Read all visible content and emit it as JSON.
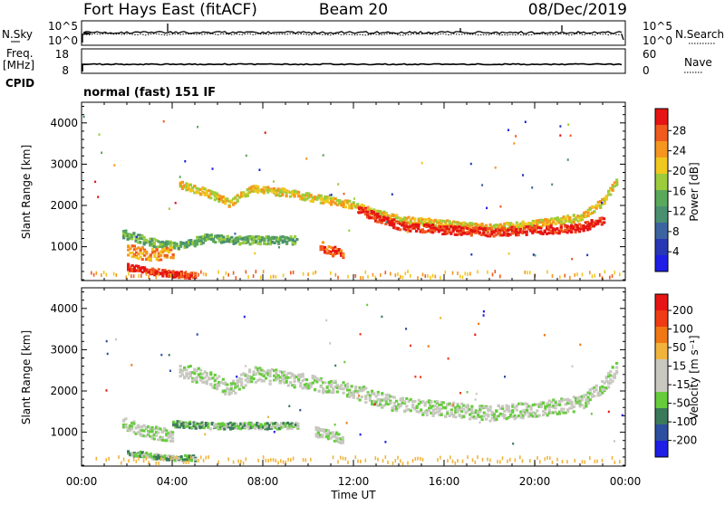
{
  "header": {
    "station": "Fort Hays East (fitACF)",
    "beam": "Beam 20",
    "date": "08/Dec/2019"
  },
  "top_panels": {
    "nsky_label": "N.Sky",
    "nsearch_label": "N.Search",
    "nsky_ticks": [
      "10^5",
      "10^0"
    ],
    "freq_label": "Freq.",
    "freq_unit": "[MHz]",
    "freq_ticks": [
      "18",
      "8"
    ],
    "nave_label": "Nave",
    "nave_ticks": [
      "60",
      "0"
    ],
    "cpid_label": "CPID",
    "cpid_text": "normal (fast) 151 IF"
  },
  "colors": {
    "power": [
      "#1e1ee6",
      "#2837b4",
      "#3c64a0",
      "#4a9070",
      "#5aa85a",
      "#9ccc3c",
      "#f0c81e",
      "#f5961e",
      "#f05a1e",
      "#e61414"
    ],
    "velocity": [
      "#1e1ee6",
      "#2d4fa0",
      "#3a7a5a",
      "#66cc3c",
      "#c8c8c0",
      "#c8c8c0",
      "#f0b43c",
      "#f07814",
      "#f03c14",
      "#e61414"
    ]
  },
  "chart_data": [
    {
      "type": "heatmap",
      "name": "power",
      "ylabel": "Slant Range [km]",
      "colorbar_label": "Power [dB]",
      "colorbar_ticks": [
        "28",
        "24",
        "20",
        "16",
        "12",
        "8",
        "4"
      ],
      "ylim": [
        180,
        4500
      ],
      "yticks": [
        1000,
        2000,
        3000,
        4000
      ],
      "xlim": [
        0,
        24
      ],
      "bands": [
        {
          "points": [
            [
              4.3,
              2500
            ],
            [
              5.5,
              2300
            ],
            [
              6.5,
              2050
            ],
            [
              7.5,
              2400
            ],
            [
              9,
              2300
            ],
            [
              10.5,
              2150
            ],
            [
              12,
              2000
            ],
            [
              13,
              1800
            ],
            [
              14,
              1650
            ],
            [
              16,
              1550
            ],
            [
              18,
              1450
            ],
            [
              20,
              1550
            ],
            [
              22,
              1700
            ],
            [
              23,
              2100
            ],
            [
              23.6,
              2600
            ]
          ],
          "thickness": 180,
          "level": 6
        },
        {
          "points": [
            [
              12.2,
              1900
            ],
            [
              13,
              1700
            ],
            [
              14,
              1500
            ],
            [
              16,
              1400
            ],
            [
              18,
              1350
            ],
            [
              20,
              1400
            ],
            [
              22,
              1450
            ],
            [
              23,
              1650
            ]
          ],
          "thickness": 200,
          "level": 9
        },
        {
          "points": [
            [
              1.8,
              1300
            ],
            [
              3,
              1100
            ],
            [
              4.2,
              1000
            ],
            [
              5.5,
              1200
            ],
            [
              7,
              1150
            ],
            [
              8.5,
              1150
            ],
            [
              9.5,
              1150
            ]
          ],
          "thickness": 200,
          "level": 4
        },
        {
          "points": [
            [
              2,
              900
            ],
            [
              3,
              800
            ],
            [
              4,
              850
            ]
          ],
          "thickness": 300,
          "level": 7
        },
        {
          "points": [
            [
              2,
              500
            ],
            [
              3,
              400
            ],
            [
              4,
              330
            ],
            [
              5,
              300
            ]
          ],
          "thickness": 150,
          "level": 9
        },
        {
          "points": [
            [
              10.5,
              1000
            ],
            [
              11,
              900
            ],
            [
              11.5,
              800
            ]
          ],
          "thickness": 250,
          "level": 8
        }
      ]
    },
    {
      "type": "heatmap",
      "name": "velocity",
      "ylabel": "Slant Range [km]",
      "xlabel": "Time UT",
      "colorbar_label": "Velocity [m s⁻¹]",
      "colorbar_ticks": [
        "200",
        "100",
        "50",
        "15",
        "-15",
        "-50",
        "-100",
        "-200"
      ],
      "ylim": [
        180,
        4500
      ],
      "yticks": [
        1000,
        2000,
        3000,
        4000
      ],
      "xlim": [
        0,
        24
      ],
      "xticks": [
        "00:00",
        "04:00",
        "08:00",
        "12:00",
        "16:00",
        "20:00",
        "00:00"
      ],
      "bands": [
        {
          "points": [
            [
              4.3,
              2500
            ],
            [
              5.5,
              2300
            ],
            [
              6.5,
              2050
            ],
            [
              7.5,
              2400
            ],
            [
              9,
              2300
            ],
            [
              10.5,
              2150
            ],
            [
              12,
              2000
            ],
            [
              13,
              1800
            ],
            [
              14,
              1650
            ],
            [
              16,
              1550
            ],
            [
              18,
              1450
            ],
            [
              20,
              1550
            ],
            [
              22,
              1700
            ],
            [
              23,
              2100
            ],
            [
              23.6,
              2600
            ]
          ],
          "thickness": 360,
          "level": 4
        },
        {
          "points": [
            [
              4,
              1200
            ],
            [
              5.5,
              1150
            ],
            [
              7,
              1150
            ],
            [
              8.5,
              1150
            ],
            [
              9.5,
              1150
            ]
          ],
          "thickness": 150,
          "level": 3
        },
        {
          "points": [
            [
              2,
              500
            ],
            [
              3,
              420
            ],
            [
              4,
              380
            ],
            [
              5,
              360
            ]
          ],
          "thickness": 130,
          "level": 3
        },
        {
          "points": [
            [
              1.8,
              1200
            ],
            [
              3,
              1000
            ],
            [
              4,
              900
            ]
          ],
          "thickness": 300,
          "level": 4
        },
        {
          "points": [
            [
              10.3,
              1000
            ],
            [
              11,
              900
            ],
            [
              11.5,
              850
            ]
          ],
          "thickness": 250,
          "level": 4
        }
      ]
    }
  ]
}
